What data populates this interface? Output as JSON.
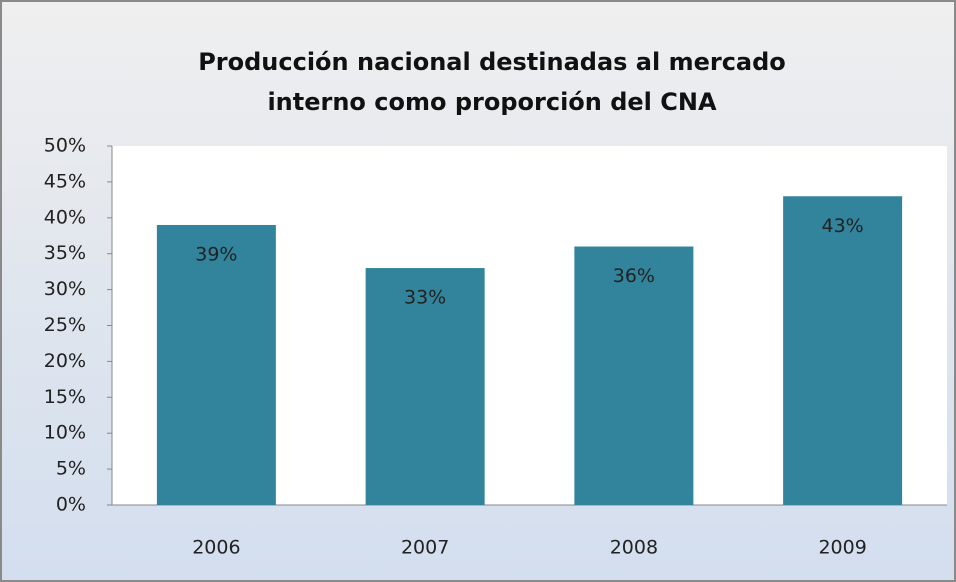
{
  "chart_data": {
    "type": "bar",
    "title": "Producción nacional destinadas al mercado interno como proporción del CNA",
    "categories": [
      "2006",
      "2007",
      "2008",
      "2009"
    ],
    "values": [
      39,
      33,
      36,
      43
    ],
    "value_labels": [
      "39%",
      "33%",
      "36%",
      "43%"
    ],
    "color": "#31849b",
    "ylim": [
      0,
      50
    ],
    "yticks": [
      {
        "value": 0,
        "label": "0%"
      },
      {
        "value": 5,
        "label": "5%"
      },
      {
        "value": 10,
        "label": "10%"
      },
      {
        "value": 15,
        "label": "15%"
      },
      {
        "value": 20,
        "label": "20%"
      },
      {
        "value": 25,
        "label": "25%"
      },
      {
        "value": 30,
        "label": "30%"
      },
      {
        "value": 35,
        "label": "35%"
      },
      {
        "value": 40,
        "label": "40%"
      },
      {
        "value": 45,
        "label": "45%"
      },
      {
        "value": 50,
        "label": "50%"
      }
    ],
    "grid": false
  }
}
